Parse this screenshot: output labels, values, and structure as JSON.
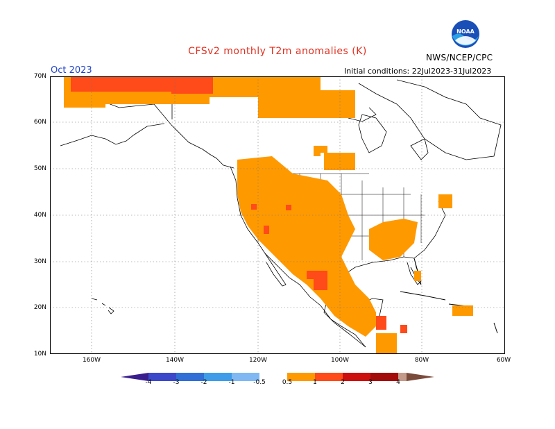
{
  "title": "CFSv2 monthly T2m anomalies (K)",
  "month": "Oct 2023",
  "initial_conditions": "Initial conditions: 22Jul2023-31Jul2023",
  "agency": "NWS/NCEP/CPC",
  "logo_text": "NOAA",
  "map": {
    "lat_labels": [
      "70N",
      "60N",
      "50N",
      "40N",
      "30N",
      "20N",
      "10N"
    ],
    "lon_labels": [
      "160W",
      "140W",
      "120W",
      "100W",
      "80W",
      "60W"
    ],
    "lat_range": [
      10,
      70
    ],
    "lon_range": [
      -170,
      -60
    ],
    "gridlines": "dotted"
  },
  "legend": {
    "labels": [
      "-4",
      "-3",
      "-2",
      "-1",
      "-0.5",
      "0.5",
      "1",
      "2",
      "3",
      "4"
    ],
    "colors": [
      "#3a1e8e",
      "#3b48c9",
      "#2f6fd6",
      "#3f9ce8",
      "#7fb8f2",
      "#ffffff",
      "#ff9900",
      "#ff4a1a",
      "#cc1010",
      "#a30a0a",
      "#c49a8a",
      "#7a4a3a"
    ]
  },
  "colors": {
    "anom_05_1": "#ff9900",
    "anom_1_2": "#ff4a1a",
    "title": "#e03020",
    "month": "#2244cc"
  }
}
